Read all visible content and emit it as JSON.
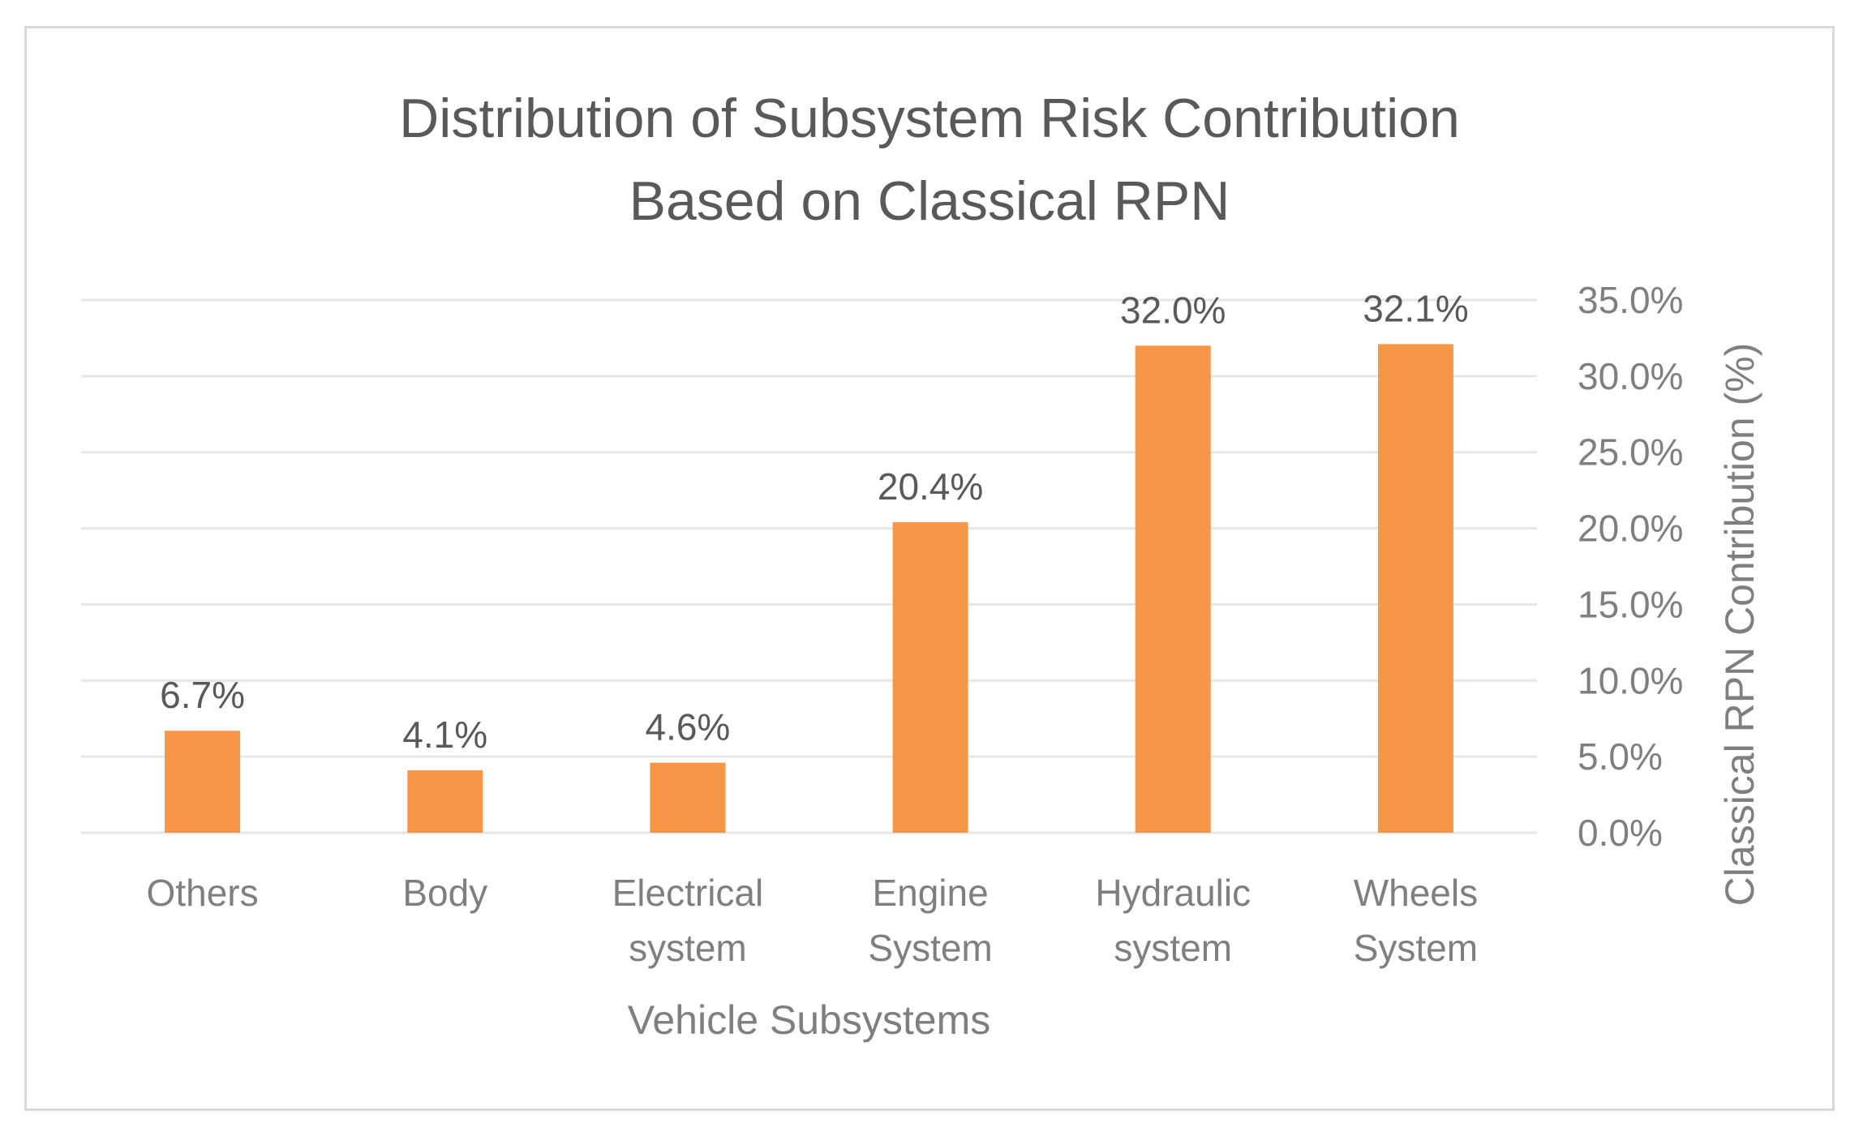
{
  "chart_data": {
    "type": "bar",
    "title": "Distribution of Subsystem Risk Contribution Based on Classical RPN",
    "title_lines": [
      "Distribution of Subsystem Risk Contribution",
      "Based on Classical RPN"
    ],
    "xlabel": "Vehicle Subsystems",
    "ylabel": "Classical RPN Contribution (%)",
    "categories": [
      [
        "Others"
      ],
      [
        "Body"
      ],
      [
        "Electrical",
        "system"
      ],
      [
        "Engine",
        "System"
      ],
      [
        "Hydraulic",
        "system"
      ],
      [
        "Wheels",
        "System"
      ]
    ],
    "values": [
      6.7,
      4.1,
      4.6,
      20.4,
      32.0,
      32.1
    ],
    "data_labels": [
      "6.7%",
      "4.1%",
      "4.6%",
      "20.4%",
      "32.0%",
      "32.1%"
    ],
    "ylim": [
      0,
      35
    ],
    "yticks": [
      0,
      5,
      10,
      15,
      20,
      25,
      30,
      35
    ],
    "ytick_labels": [
      "0.0%",
      "5.0%",
      "10.0%",
      "15.0%",
      "20.0%",
      "25.0%",
      "30.0%",
      "35.0%"
    ],
    "y_axis_side": "right",
    "grid": true,
    "legend": "none",
    "colors": {
      "bar": "#F79646",
      "grid": "#e6e6e6",
      "frame": "#d9d9d9",
      "text": "#595959",
      "axis_text": "#7f7f7f"
    }
  }
}
